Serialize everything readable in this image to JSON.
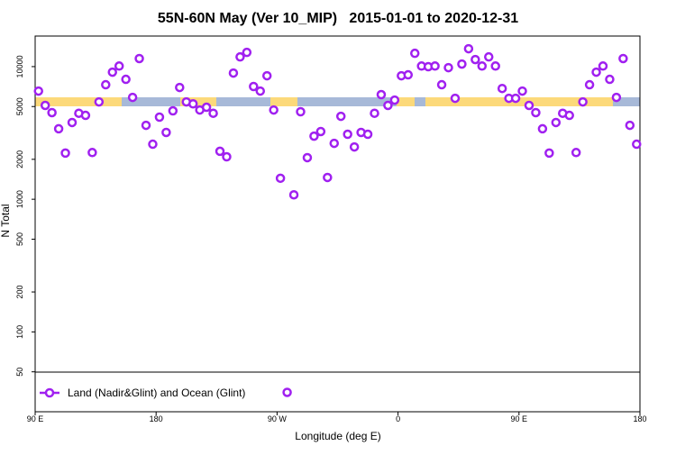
{
  "chart_data": {
    "type": "scatter",
    "title": "55N-60N May (Ver 10_MIP)   2015-01-01 to 2020-12-31",
    "xlabel": "Longitude (deg E)",
    "ylabel": "N Total",
    "x": [
      92.5,
      97.5,
      102.5,
      107.5,
      112.5,
      117.5,
      122.5,
      127.5,
      132.5,
      137.5,
      142.5,
      147.5,
      152.5,
      157.5,
      162.5,
      167.5,
      172.5,
      177.5,
      182.5,
      187.5,
      192.5,
      197.5,
      202.5,
      207.5,
      212.5,
      217.5,
      222.5,
      227.5,
      232.5,
      237.5,
      242.5,
      247.5,
      252.5,
      257.5,
      262.5,
      267.5,
      272.5,
      277.5,
      282.5,
      287.5,
      292.5,
      297.5,
      302.5,
      307.5,
      312.5,
      317.5,
      322.5,
      327.5,
      332.5,
      337.5,
      342.5,
      347.5,
      352.5,
      357.5,
      362.5,
      367.5,
      372.5,
      377.5,
      382.5,
      387.5,
      392.5,
      397.5,
      402.5,
      407.5,
      412.5,
      417.5,
      422.5,
      427.5,
      432.5,
      437.5,
      442.5,
      447.5,
      452.5,
      457.5,
      462.5,
      467.5,
      472.5,
      477.5,
      482.5,
      487.5,
      492.5,
      497.5,
      502.5,
      507.5,
      512.5,
      517.5,
      522.5,
      527.5,
      532.5,
      537.5
    ],
    "series": [
      {
        "name": "Land (Nadir&Glint) and Ocean (Glint)",
        "color": "#a020f0",
        "values": [
          6540,
          5100,
          4500,
          3400,
          2230,
          3790,
          4450,
          4290,
          2250,
          5420,
          7300,
          9080,
          10100,
          8020,
          5860,
          11500,
          3610,
          2600,
          4160,
          3190,
          4640,
          6960,
          5420,
          5240,
          4710,
          4940,
          4450,
          2300,
          2090,
          8940,
          11830,
          12800,
          7080,
          6540,
          8530,
          4710,
          1440,
          35,
          1080,
          4570,
          2060,
          2990,
          3240,
          1460,
          2640,
          4220,
          3090,
          2480,
          3190,
          3090,
          4450,
          6150,
          5100,
          5590,
          8530,
          8670,
          12600,
          10100,
          9980,
          10100,
          7300,
          9820,
          5770,
          10450,
          13640,
          11300,
          10100,
          11830,
          10100,
          6840,
          5770,
          5770,
          6540,
          5100,
          4500,
          3400,
          2230,
          3790,
          4450,
          4290,
          2250,
          5420,
          7300,
          9080,
          10100,
          8020,
          5860,
          11500,
          3610,
          2600
        ]
      }
    ],
    "xlim": [
      90,
      540
    ],
    "xticks": [
      {
        "value": 90,
        "label": "90 E"
      },
      180,
      {
        "value": 270,
        "label": "90 W"
      },
      {
        "value": 360,
        "label": "0"
      },
      {
        "value": 450,
        "label": "90 E"
      },
      {
        "value": 540,
        "label": "180"
      }
    ],
    "ylim": [
      25,
      17000
    ],
    "yticks": [
      50,
      100,
      200,
      500,
      1000,
      2000,
      5000,
      10000
    ],
    "yscale": "log"
  }
}
